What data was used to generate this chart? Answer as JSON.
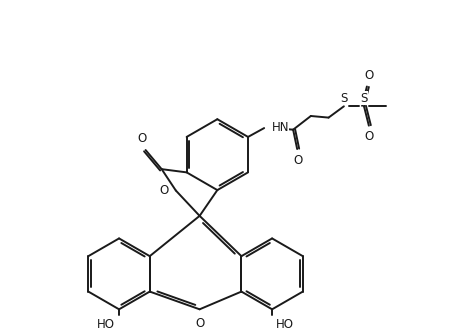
{
  "bg": "#ffffff",
  "lc": "#1a1a1a",
  "lw": 1.4,
  "fs": 8.5,
  "figsize": [
    4.54,
    3.32
  ],
  "dpi": 100,
  "xlim": [
    -0.5,
    9.5
  ],
  "ylim": [
    -0.3,
    7.7
  ]
}
